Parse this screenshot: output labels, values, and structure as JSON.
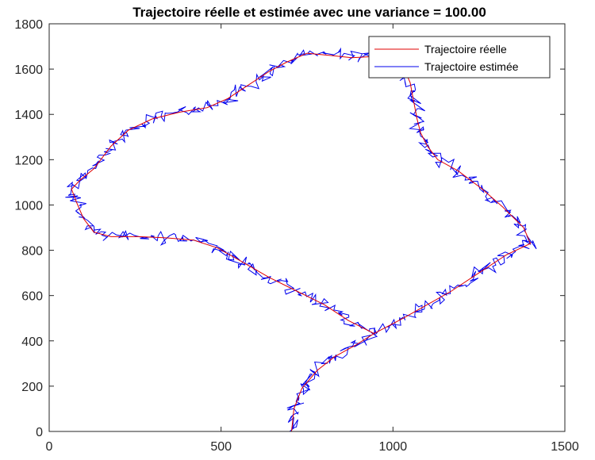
{
  "chart_data": {
    "type": "line",
    "title": "Trajectoire réelle et estimée avec une variance = 100.00",
    "xlabel": "",
    "ylabel": "",
    "xlim": [
      0,
      1500
    ],
    "ylim": [
      0,
      1800
    ],
    "xticks": [
      0,
      500,
      1000,
      1500
    ],
    "yticks": [
      0,
      200,
      400,
      600,
      800,
      1000,
      1200,
      1400,
      1600,
      1800
    ],
    "grid": false,
    "legend_position": "top-right",
    "series": [
      {
        "name": "Trajectoire réelle",
        "color": "#e00000",
        "points": [
          [
            705,
            0
          ],
          [
            712,
            100
          ],
          [
            735,
            190
          ],
          [
            780,
            270
          ],
          [
            830,
            330
          ],
          [
            890,
            380
          ],
          [
            945,
            432
          ],
          [
            870,
            490
          ],
          [
            800,
            560
          ],
          [
            720,
            620
          ],
          [
            640,
            680
          ],
          [
            560,
            750
          ],
          [
            490,
            810
          ],
          [
            420,
            845
          ],
          [
            340,
            855
          ],
          [
            260,
            860
          ],
          [
            180,
            860
          ],
          [
            130,
            880
          ],
          [
            100,
            940
          ],
          [
            80,
            1010
          ],
          [
            65,
            1070
          ],
          [
            90,
            1110
          ],
          [
            130,
            1160
          ],
          [
            180,
            1260
          ],
          [
            230,
            1330
          ],
          [
            300,
            1380
          ],
          [
            380,
            1410
          ],
          [
            460,
            1430
          ],
          [
            520,
            1470
          ],
          [
            580,
            1530
          ],
          [
            640,
            1590
          ],
          [
            690,
            1630
          ],
          [
            750,
            1670
          ],
          [
            820,
            1660
          ],
          [
            880,
            1650
          ],
          [
            940,
            1655
          ],
          [
            990,
            1660
          ],
          [
            1030,
            1610
          ],
          [
            1050,
            1540
          ],
          [
            1060,
            1460
          ],
          [
            1070,
            1380
          ],
          [
            1080,
            1320
          ],
          [
            1100,
            1260
          ],
          [
            1130,
            1200
          ],
          [
            1190,
            1150
          ],
          [
            1260,
            1070
          ],
          [
            1320,
            990
          ],
          [
            1380,
            900
          ],
          [
            1400,
            830
          ],
          [
            1330,
            780
          ],
          [
            1250,
            700
          ],
          [
            1170,
            620
          ],
          [
            1100,
            560
          ],
          [
            1030,
            500
          ],
          [
            945,
            432
          ]
        ]
      },
      {
        "name": "Trajectoire estimée",
        "color": "#0000ee",
        "noise": 12,
        "seed": 7
      }
    ]
  }
}
